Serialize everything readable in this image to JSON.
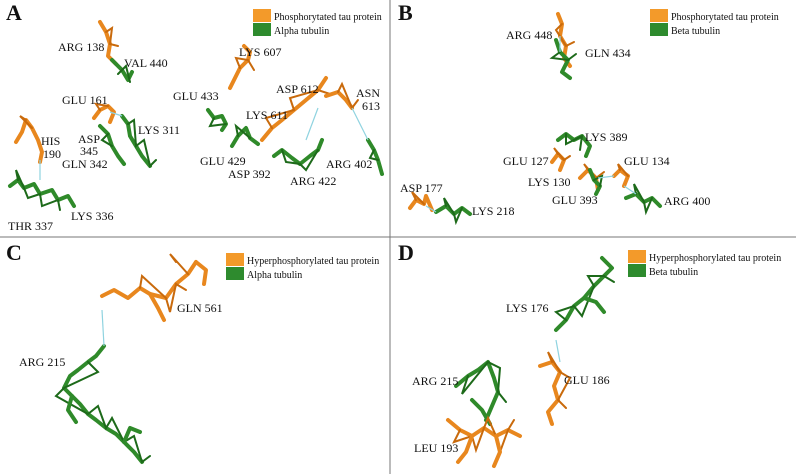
{
  "colors": {
    "phospho": "#f39a2a",
    "tubulin": "#2e8b2e",
    "hbond": "#8fd3e0"
  },
  "panels": [
    {
      "letter": "A",
      "legend": [
        "Phosphorytated tau protein",
        "Alpha tubulin"
      ],
      "labels": [
        "ARG 138",
        "VAL 440",
        "LYS 607",
        "GLU 161",
        "GLU 433",
        "ASP 612",
        "ASN",
        "613",
        "HIS",
        "190",
        "LYS 311",
        "ASP",
        "345",
        "GLN 342",
        "LYS 611",
        "GLU 429",
        "ASP 392",
        "ARG 422",
        "ARG 402",
        "THR 337",
        "LYS 336"
      ]
    },
    {
      "letter": "B",
      "legend": [
        "Phosphorytated tau protein",
        "Beta tubulin"
      ],
      "labels": [
        "ARG 448",
        "GLN 434",
        "LYS 389",
        "GLU 127",
        "GLU 134",
        "LYS 130",
        "GLU 393",
        "ASP 177",
        "LYS 218",
        "ARG 400"
      ]
    },
    {
      "letter": "C",
      "legend": [
        "Hyperphosphorylated tau protein",
        "Alpha tubulin"
      ],
      "labels": [
        "GLN 561",
        "ARG 215"
      ]
    },
    {
      "letter": "D",
      "legend": [
        "Hyperphosphorylated tau protein",
        "Beta tubulin"
      ],
      "labels": [
        "LYS 176",
        "ARG 215",
        "GLU 186",
        "LEU 193"
      ]
    }
  ]
}
